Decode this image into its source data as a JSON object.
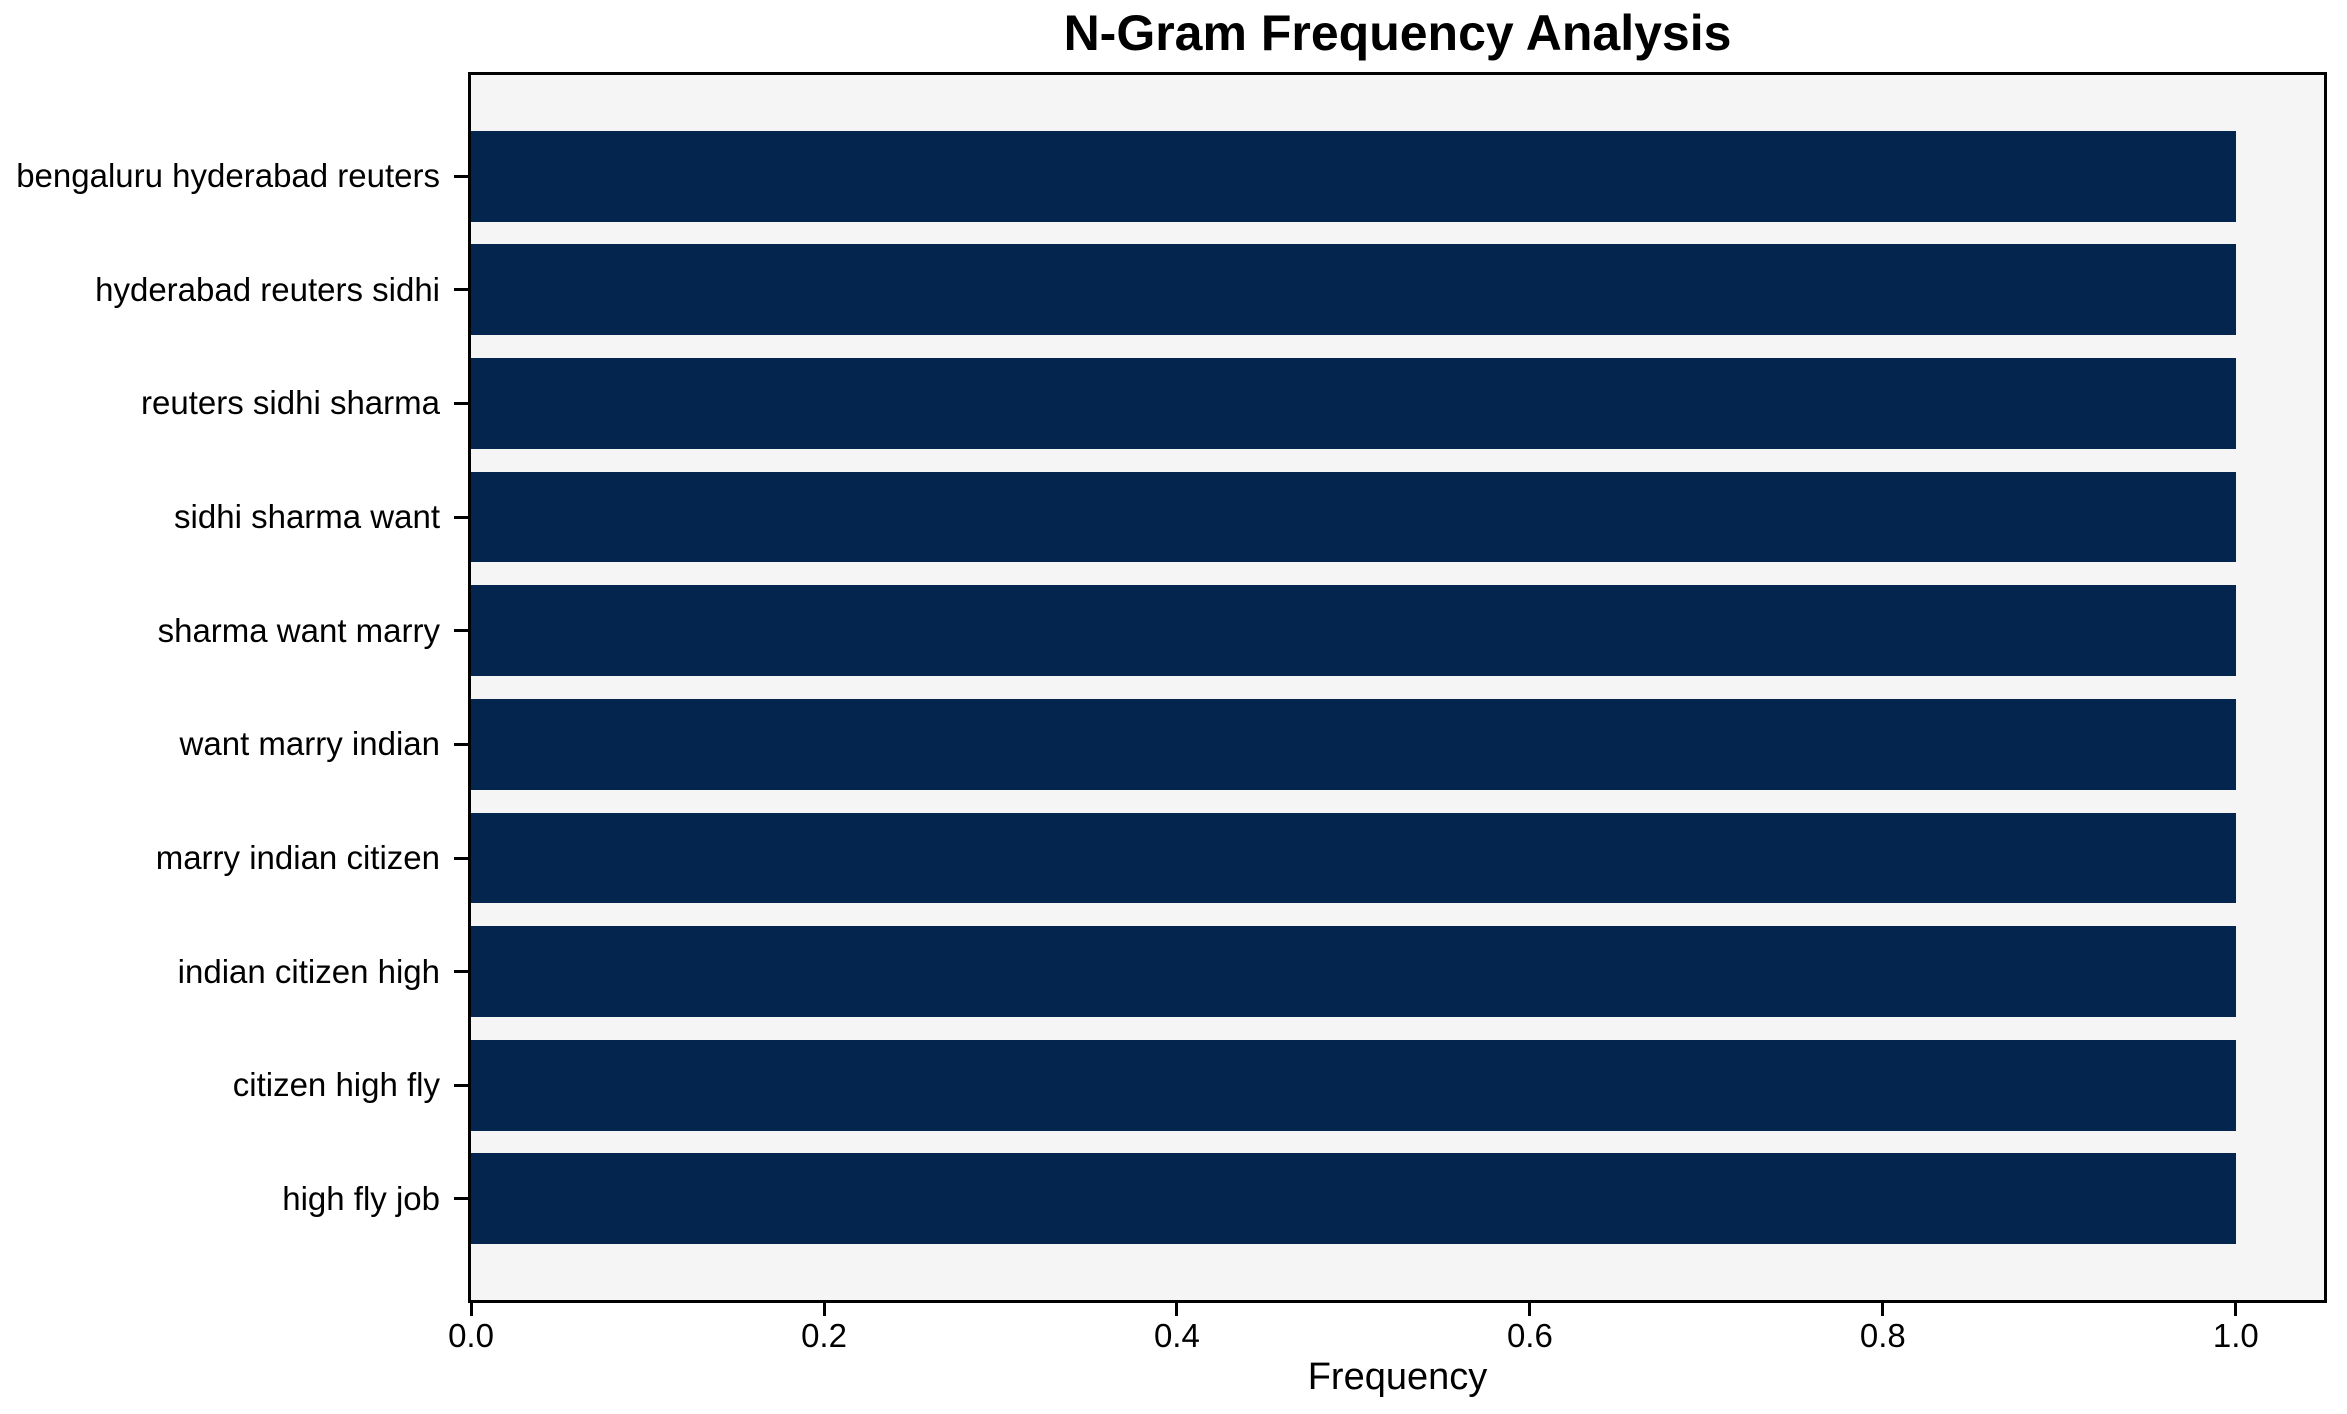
{
  "chart_data": {
    "type": "bar",
    "orientation": "horizontal",
    "title": "N-Gram Frequency Analysis",
    "xlabel": "Frequency",
    "ylabel": "",
    "categories": [
      "bengaluru hyderabad reuters",
      "hyderabad reuters sidhi",
      "reuters sidhi sharma",
      "sidhi sharma want",
      "sharma want marry",
      "want marry indian",
      "marry indian citizen",
      "indian citizen high",
      "citizen high fly",
      "high fly job"
    ],
    "values": [
      1.0,
      1.0,
      1.0,
      1.0,
      1.0,
      1.0,
      1.0,
      1.0,
      1.0,
      1.0
    ],
    "xlim": [
      0,
      1.05
    ],
    "xticks": [
      0.0,
      0.2,
      0.4,
      0.6,
      0.8,
      1.0
    ],
    "xtick_labels": [
      "0.0",
      "0.2",
      "0.4",
      "0.6",
      "0.8",
      "1.0"
    ],
    "bar_height_fraction": 0.8,
    "axis_margin_fraction": 0.05,
    "grid": false,
    "legend": null,
    "colors": {
      "bar": "#03254e",
      "plot_background": "#f5f5f5",
      "figure_background": "#ffffff",
      "spine": "#000000",
      "text": "#000000"
    }
  }
}
